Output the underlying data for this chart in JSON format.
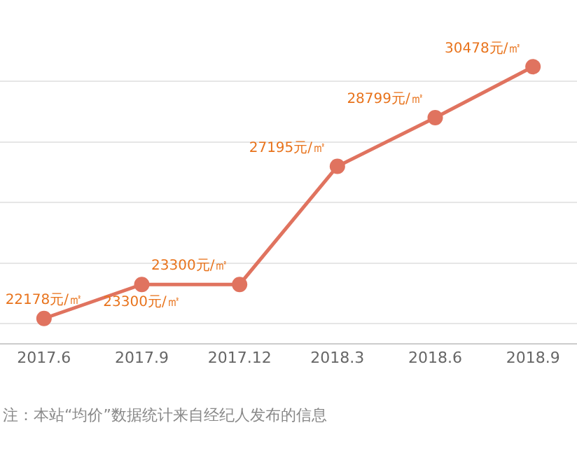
{
  "chart_data": {
    "type": "line",
    "categories": [
      "2017.6",
      "2017.9",
      "2017.12",
      "2018.3",
      "2018.6",
      "2018.9"
    ],
    "series": [
      {
        "color": "#e0735f",
        "values": [
          22178,
          23300,
          23300,
          27195,
          28799,
          30478
        ],
        "value_labels": [
          "22178元/㎡",
          "23300元/㎡",
          "23300元/㎡",
          "27195元/㎡",
          "28799元/㎡",
          "30478元/㎡"
        ]
      }
    ],
    "grid": "y",
    "marker": "circle",
    "line_style": "solid",
    "legend": false,
    "tick_labels": "x",
    "annotations": [
      "注：本站“均价”数据统计来自经纪人发布的信息"
    ]
  }
}
